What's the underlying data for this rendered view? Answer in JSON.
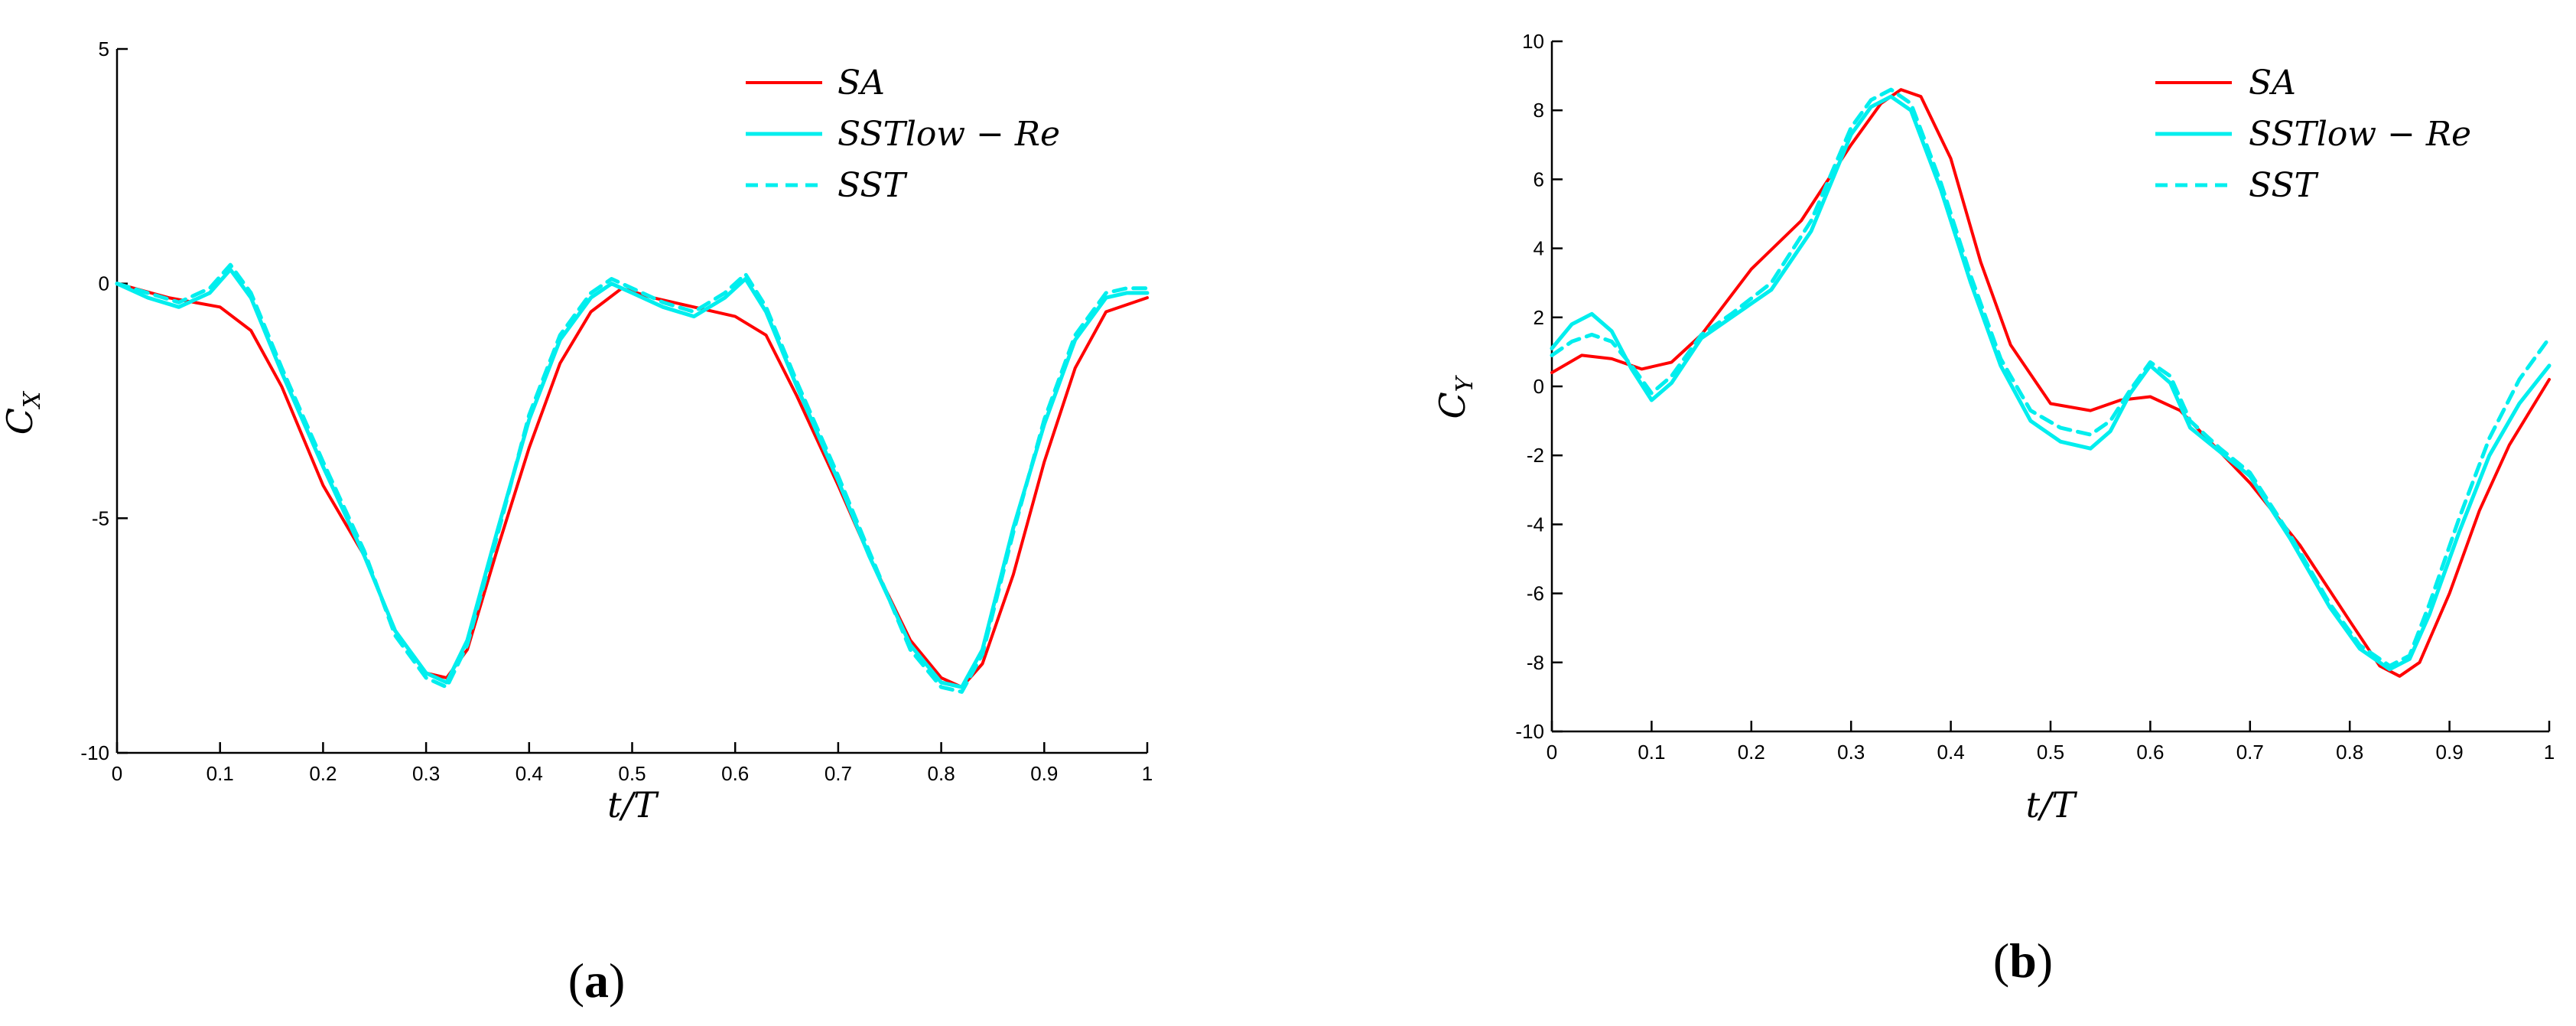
{
  "chart_data": [
    {
      "type": "line",
      "panel_label": "(a)",
      "panel_letter": "a",
      "xlabel": "t/T",
      "ylabel": "C_X",
      "ylabel_main": "C",
      "ylabel_sub": "X",
      "xlim": [
        0,
        1
      ],
      "ylim": [
        -10,
        5
      ],
      "xticks": [
        0,
        0.1,
        0.2,
        0.3,
        0.4,
        0.5,
        0.6,
        0.7,
        0.8,
        0.9,
        1
      ],
      "xtick_labels": [
        "0",
        "0.1",
        "0.2",
        "0.3",
        "0.4",
        "0.5",
        "0.6",
        "0.7",
        "0.8",
        "0.9",
        "1"
      ],
      "yticks": [
        -10,
        -5,
        0,
        5
      ],
      "ytick_labels": [
        "-10",
        "-5",
        "0",
        "5"
      ],
      "grid": false,
      "legend_position": "top-right",
      "series": [
        {
          "name": "SA",
          "color": "#ff0000",
          "dash": "solid",
          "x": [
            0,
            0.05,
            0.1,
            0.13,
            0.16,
            0.2,
            0.24,
            0.27,
            0.3,
            0.32,
            0.34,
            0.37,
            0.4,
            0.43,
            0.46,
            0.49,
            0.52,
            0.56,
            0.6,
            0.63,
            0.66,
            0.7,
            0.73,
            0.77,
            0.8,
            0.82,
            0.84,
            0.87,
            0.9,
            0.93,
            0.96,
            1
          ],
          "y": [
            0,
            -0.3,
            -0.5,
            -1.0,
            -2.2,
            -4.3,
            -5.8,
            -7.4,
            -8.3,
            -8.4,
            -7.8,
            -5.6,
            -3.5,
            -1.7,
            -0.6,
            -0.1,
            -0.3,
            -0.5,
            -0.7,
            -1.1,
            -2.4,
            -4.3,
            -5.8,
            -7.6,
            -8.4,
            -8.6,
            -8.1,
            -6.2,
            -3.8,
            -1.8,
            -0.6,
            -0.3
          ]
        },
        {
          "name": "SSTlow − Re",
          "color": "#00eeee",
          "dash": "solid",
          "x": [
            0,
            0.03,
            0.06,
            0.09,
            0.11,
            0.13,
            0.16,
            0.2,
            0.24,
            0.27,
            0.3,
            0.32,
            0.34,
            0.37,
            0.4,
            0.43,
            0.46,
            0.48,
            0.5,
            0.53,
            0.56,
            0.59,
            0.61,
            0.63,
            0.66,
            0.7,
            0.73,
            0.77,
            0.8,
            0.82,
            0.84,
            0.87,
            0.9,
            0.93,
            0.96,
            0.98,
            1
          ],
          "y": [
            0,
            -0.3,
            -0.5,
            -0.2,
            0.3,
            -0.3,
            -1.9,
            -3.9,
            -5.8,
            -7.4,
            -8.3,
            -8.5,
            -7.6,
            -5.2,
            -2.9,
            -1.2,
            -0.3,
            0.0,
            -0.2,
            -0.5,
            -0.7,
            -0.3,
            0.1,
            -0.6,
            -2.2,
            -4.2,
            -5.8,
            -7.7,
            -8.5,
            -8.6,
            -7.8,
            -5.2,
            -3.0,
            -1.2,
            -0.3,
            -0.2,
            -0.2
          ]
        },
        {
          "name": "SST",
          "color": "#00eeee",
          "dash": "dashed",
          "x": [
            0,
            0.03,
            0.06,
            0.09,
            0.11,
            0.13,
            0.16,
            0.2,
            0.24,
            0.27,
            0.3,
            0.32,
            0.34,
            0.37,
            0.4,
            0.43,
            0.46,
            0.48,
            0.5,
            0.53,
            0.56,
            0.59,
            0.61,
            0.63,
            0.66,
            0.7,
            0.73,
            0.77,
            0.8,
            0.82,
            0.84,
            0.87,
            0.9,
            0.93,
            0.96,
            0.98,
            1
          ],
          "y": [
            0,
            -0.2,
            -0.4,
            -0.1,
            0.4,
            -0.2,
            -1.8,
            -3.8,
            -5.7,
            -7.5,
            -8.4,
            -8.6,
            -7.7,
            -5.3,
            -2.8,
            -1.1,
            -0.2,
            0.1,
            -0.1,
            -0.4,
            -0.6,
            -0.2,
            0.2,
            -0.5,
            -2.1,
            -4.1,
            -5.7,
            -7.8,
            -8.6,
            -8.7,
            -7.9,
            -5.3,
            -2.9,
            -1.1,
            -0.2,
            -0.1,
            -0.1
          ]
        }
      ]
    },
    {
      "type": "line",
      "panel_label": "(b)",
      "panel_letter": "b",
      "xlabel": "t/T",
      "ylabel": "C_Y",
      "ylabel_main": "C",
      "ylabel_sub": "Y",
      "xlim": [
        0,
        1
      ],
      "ylim": [
        -10,
        10
      ],
      "xticks": [
        0,
        0.1,
        0.2,
        0.3,
        0.4,
        0.5,
        0.6,
        0.7,
        0.8,
        0.9,
        1
      ],
      "xtick_labels": [
        "0",
        "0.1",
        "0.2",
        "0.3",
        "0.4",
        "0.5",
        "0.6",
        "0.7",
        "0.8",
        "0.9",
        "1"
      ],
      "yticks": [
        -10,
        -8,
        -6,
        -4,
        -2,
        0,
        2,
        4,
        6,
        8,
        10
      ],
      "ytick_labels": [
        "-10",
        "-8",
        "-6",
        "-4",
        "-2",
        "0",
        "2",
        "4",
        "6",
        "8",
        "10"
      ],
      "grid": false,
      "legend_position": "top-right",
      "series": [
        {
          "name": "SA",
          "color": "#ff0000",
          "dash": "solid",
          "x": [
            0,
            0.03,
            0.06,
            0.09,
            0.12,
            0.15,
            0.2,
            0.25,
            0.3,
            0.33,
            0.35,
            0.37,
            0.4,
            0.43,
            0.46,
            0.5,
            0.54,
            0.57,
            0.6,
            0.63,
            0.66,
            0.7,
            0.75,
            0.8,
            0.83,
            0.85,
            0.87,
            0.9,
            0.93,
            0.96,
            1
          ],
          "y": [
            0.4,
            0.9,
            0.8,
            0.5,
            0.7,
            1.5,
            3.4,
            4.8,
            7.0,
            8.2,
            8.6,
            8.4,
            6.6,
            3.6,
            1.2,
            -0.5,
            -0.7,
            -0.4,
            -0.3,
            -0.7,
            -1.6,
            -2.8,
            -4.6,
            -6.8,
            -8.1,
            -8.4,
            -8.0,
            -6.0,
            -3.6,
            -1.7,
            0.2
          ]
        },
        {
          "name": "SSTlow − Re",
          "color": "#00eeee",
          "dash": "solid",
          "x": [
            0,
            0.02,
            0.04,
            0.06,
            0.08,
            0.1,
            0.12,
            0.15,
            0.18,
            0.22,
            0.26,
            0.3,
            0.32,
            0.34,
            0.36,
            0.39,
            0.42,
            0.45,
            0.48,
            0.51,
            0.54,
            0.56,
            0.58,
            0.6,
            0.62,
            0.64,
            0.67,
            0.7,
            0.74,
            0.78,
            0.81,
            0.84,
            0.86,
            0.88,
            0.91,
            0.94,
            0.97,
            1
          ],
          "y": [
            1.1,
            1.8,
            2.1,
            1.6,
            0.5,
            -0.4,
            0.1,
            1.4,
            2.0,
            2.8,
            4.5,
            7.3,
            8.1,
            8.4,
            8.0,
            5.7,
            3.0,
            0.6,
            -1.0,
            -1.6,
            -1.8,
            -1.3,
            -0.2,
            0.6,
            0.1,
            -1.2,
            -1.9,
            -2.6,
            -4.4,
            -6.4,
            -7.6,
            -8.2,
            -7.9,
            -6.6,
            -4.2,
            -2.0,
            -0.5,
            0.6
          ]
        },
        {
          "name": "SST",
          "color": "#00eeee",
          "dash": "dashed",
          "x": [
            0,
            0.02,
            0.04,
            0.06,
            0.08,
            0.1,
            0.12,
            0.15,
            0.18,
            0.22,
            0.26,
            0.3,
            0.32,
            0.34,
            0.36,
            0.39,
            0.42,
            0.45,
            0.48,
            0.51,
            0.54,
            0.56,
            0.58,
            0.6,
            0.62,
            0.64,
            0.67,
            0.7,
            0.74,
            0.78,
            0.81,
            0.84,
            0.86,
            0.88,
            0.91,
            0.94,
            0.97,
            1
          ],
          "y": [
            0.9,
            1.3,
            1.5,
            1.3,
            0.6,
            -0.2,
            0.3,
            1.5,
            2.1,
            3.0,
            4.8,
            7.5,
            8.3,
            8.6,
            8.2,
            5.9,
            3.2,
            0.8,
            -0.7,
            -1.2,
            -1.4,
            -1.0,
            -0.1,
            0.7,
            0.3,
            -1.0,
            -1.8,
            -2.5,
            -4.3,
            -6.3,
            -7.5,
            -8.1,
            -7.8,
            -6.3,
            -3.8,
            -1.5,
            0.2,
            1.4
          ]
        }
      ]
    }
  ]
}
